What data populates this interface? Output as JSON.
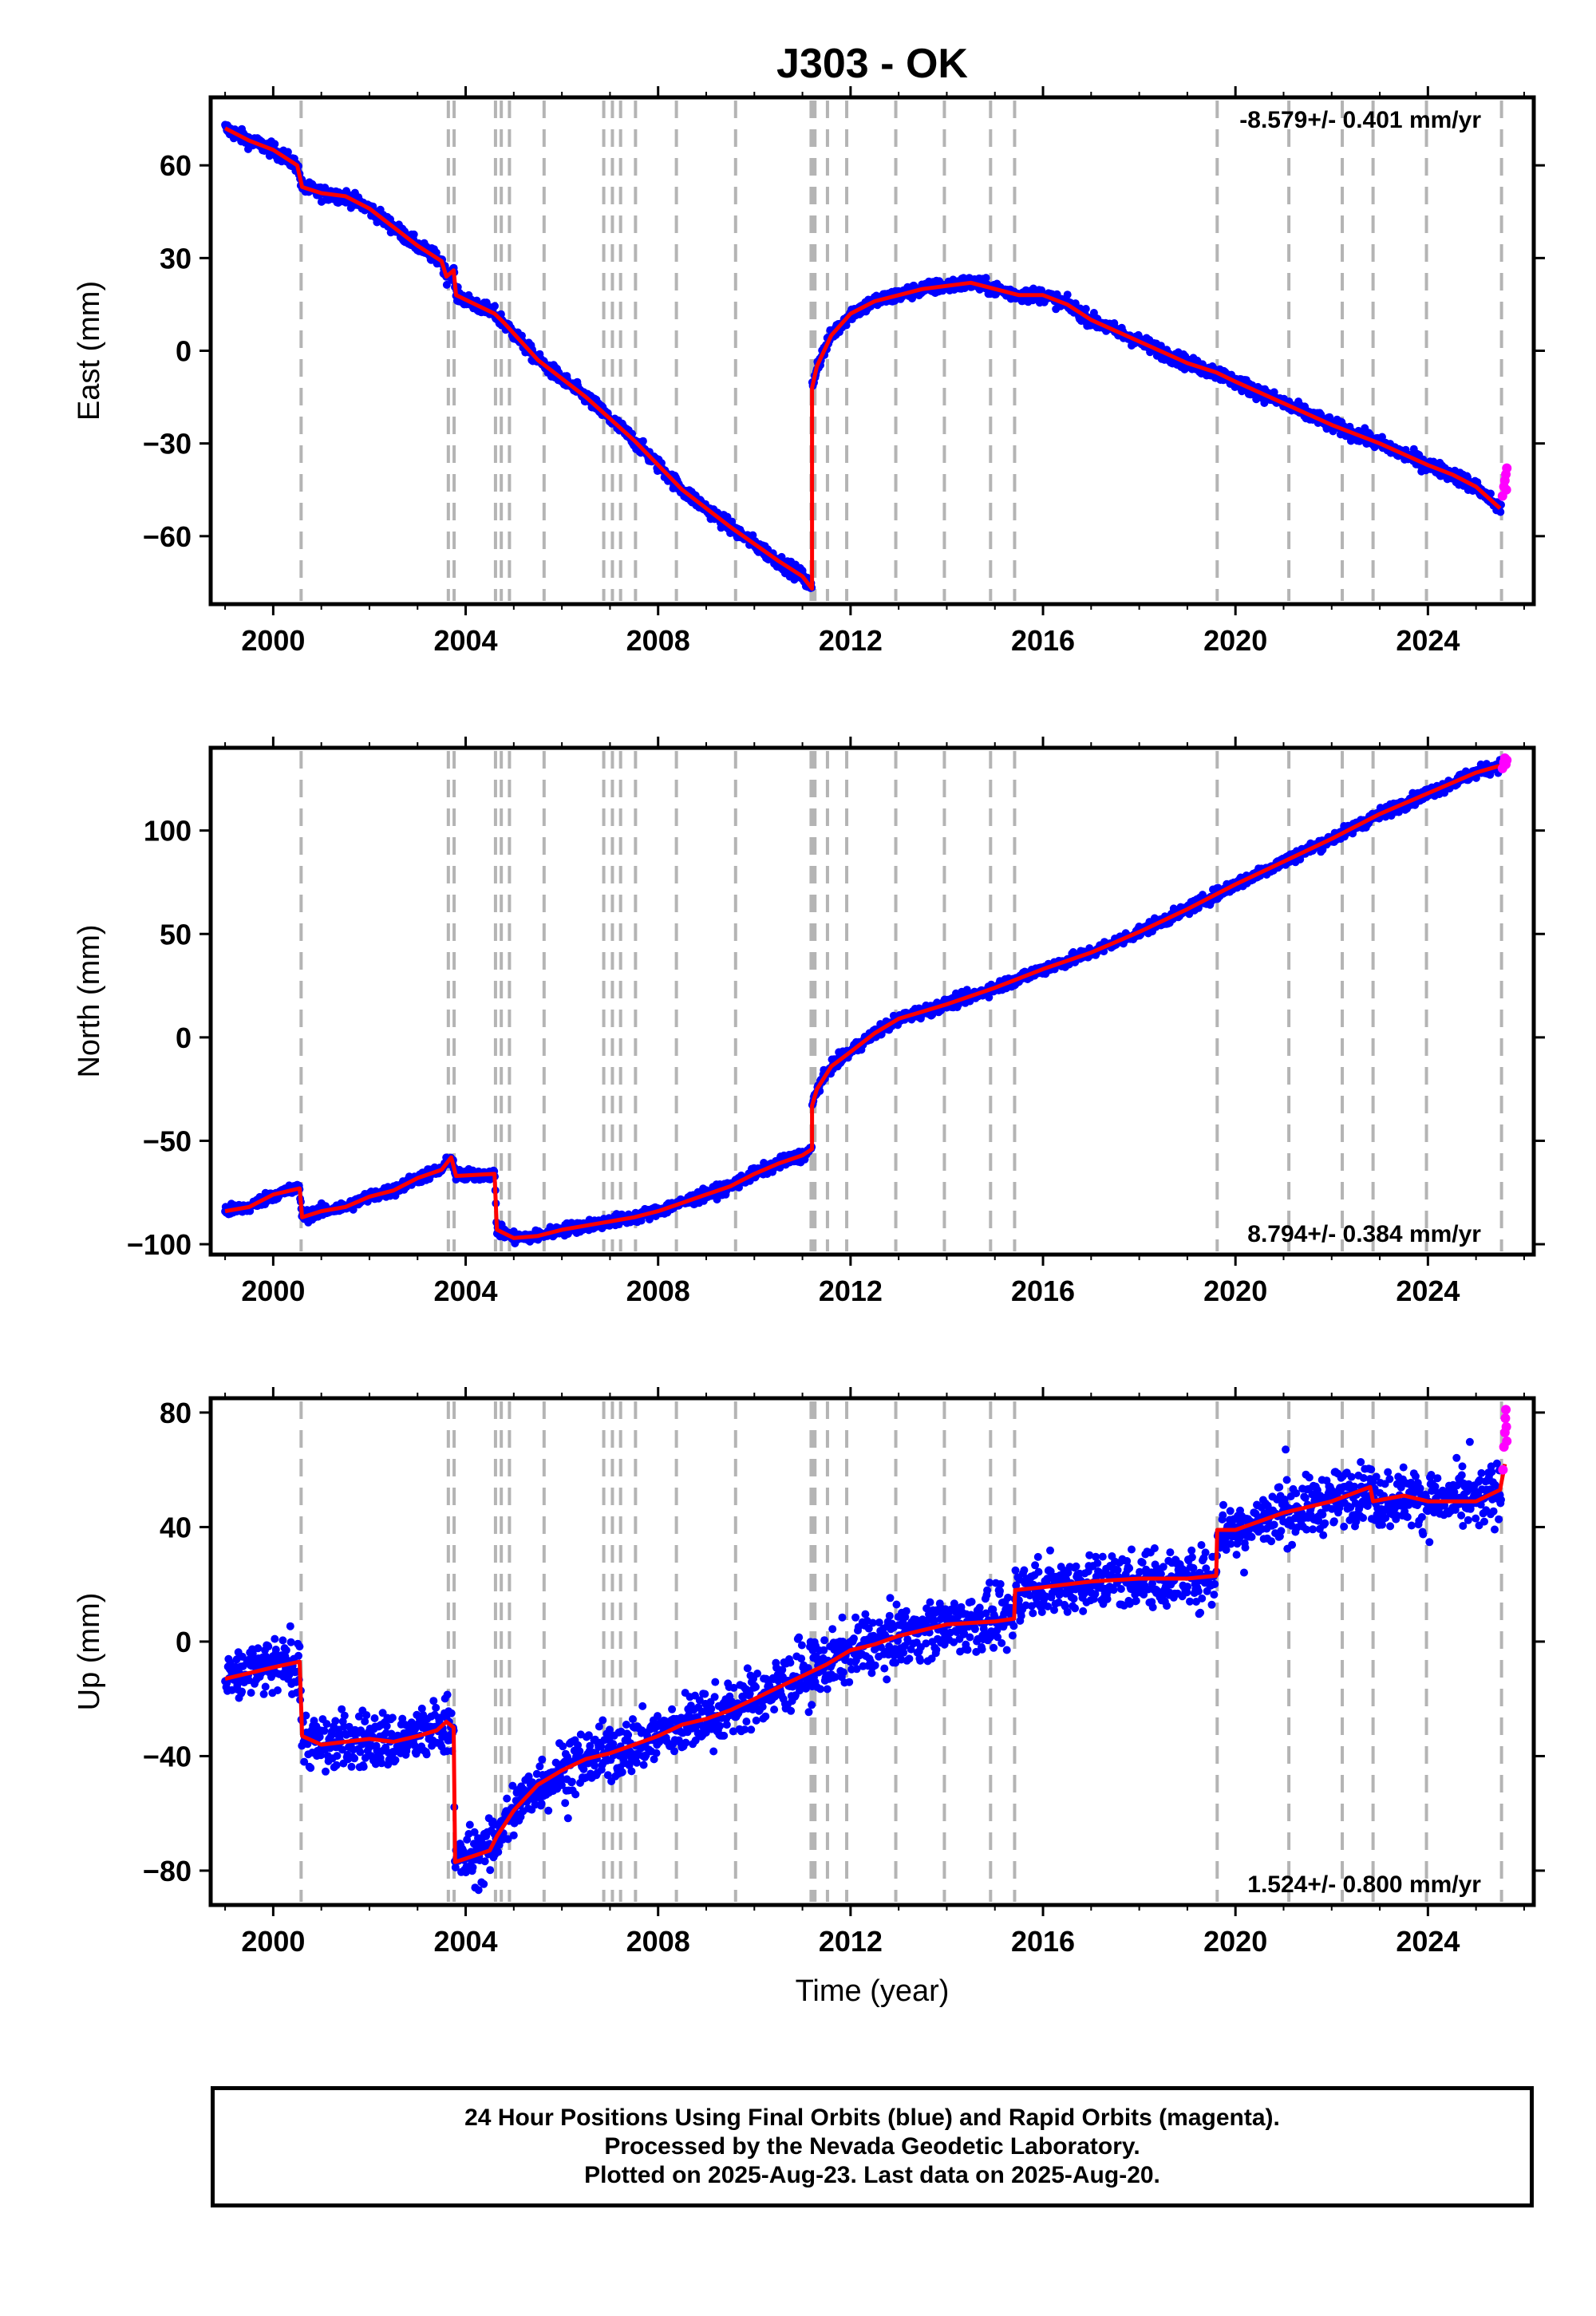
{
  "title": "J303 - OK",
  "colors": {
    "final": "#0000ff",
    "rapid": "#ff00ff",
    "model": "#ff0000",
    "events": "#b4b4b4"
  },
  "event_years": [
    2000.58,
    2003.64,
    2003.76,
    2004.62,
    2004.74,
    2004.91,
    2005.63,
    2006.87,
    2007.05,
    2007.22,
    2007.53,
    2008.38,
    2009.61,
    2011.18,
    2011.21,
    2011.26,
    2011.52,
    2011.92,
    2012.94,
    2013.95,
    2014.91,
    2015.41,
    2019.62,
    2021.11,
    2022.22,
    2022.86,
    2023.97,
    2025.53
  ],
  "chart_data": [
    {
      "type": "scatter",
      "name": "east",
      "ylabel": "East (mm)",
      "xlabel": "",
      "xlim": [
        1998.7,
        2026.2
      ],
      "ylim": [
        -82,
        82
      ],
      "xticks": [
        2000,
        2004,
        2008,
        2012,
        2016,
        2020,
        2024
      ],
      "yticks": [
        -60,
        -30,
        0,
        30,
        60
      ],
      "ytick_labels": [
        "−60",
        "−30",
        "0",
        "30",
        "60"
      ],
      "rate_text": "-8.579+/- 0.401 mm/yr",
      "rate_position": "top-right",
      "scatter_half_width": 2.0,
      "model_line": [
        [
          1999.0,
          72
        ],
        [
          1999.5,
          68
        ],
        [
          2000.0,
          65
        ],
        [
          2000.5,
          60
        ],
        [
          2000.6,
          53
        ],
        [
          2001.0,
          51
        ],
        [
          2001.5,
          50
        ],
        [
          2002.0,
          46
        ],
        [
          2002.5,
          40
        ],
        [
          2003.0,
          34
        ],
        [
          2003.5,
          29
        ],
        [
          2003.6,
          24
        ],
        [
          2003.75,
          26
        ],
        [
          2003.8,
          18
        ],
        [
          2004.6,
          12
        ],
        [
          2004.8,
          9
        ],
        [
          2005.5,
          -3
        ],
        [
          2006.5,
          -15
        ],
        [
          2007.5,
          -29
        ],
        [
          2008.5,
          -45
        ],
        [
          2009.5,
          -57
        ],
        [
          2010.5,
          -68
        ],
        [
          2011.0,
          -73
        ],
        [
          2011.2,
          -77
        ],
        [
          2011.2,
          -12
        ],
        [
          2011.3,
          -5
        ],
        [
          2011.6,
          5
        ],
        [
          2012.0,
          12
        ],
        [
          2012.5,
          16
        ],
        [
          2013.0,
          18
        ],
        [
          2013.5,
          20
        ],
        [
          2014.0,
          21
        ],
        [
          2014.5,
          22
        ],
        [
          2015.0,
          20
        ],
        [
          2015.5,
          18
        ],
        [
          2016.0,
          18
        ],
        [
          2016.5,
          15
        ],
        [
          2017.0,
          10
        ],
        [
          2018.0,
          3
        ],
        [
          2019.0,
          -4
        ],
        [
          2019.6,
          -7
        ],
        [
          2020.0,
          -10
        ],
        [
          2021.0,
          -17
        ],
        [
          2022.0,
          -24
        ],
        [
          2023.0,
          -30
        ],
        [
          2024.0,
          -37
        ],
        [
          2024.5,
          -40
        ],
        [
          2025.0,
          -44
        ],
        [
          2025.5,
          -51
        ]
      ],
      "rapid_points": [
        [
          2025.55,
          -47
        ],
        [
          2025.58,
          -44
        ],
        [
          2025.6,
          -42
        ],
        [
          2025.62,
          -40
        ],
        [
          2025.63,
          -45
        ],
        [
          2025.64,
          -38
        ]
      ]
    },
    {
      "type": "scatter",
      "name": "north",
      "ylabel": "North (mm)",
      "xlabel": "",
      "xlim": [
        1998.7,
        2026.2
      ],
      "ylim": [
        -105,
        140
      ],
      "xticks": [
        2000,
        2004,
        2008,
        2012,
        2016,
        2020,
        2024
      ],
      "yticks": [
        -100,
        -50,
        0,
        50,
        100
      ],
      "ytick_labels": [
        "−100",
        "−50",
        "0",
        "50",
        "100"
      ],
      "rate_text": "8.794+/- 0.384 mm/yr",
      "rate_position": "bottom-right",
      "scatter_half_width": 2.5,
      "model_line": [
        [
          1999.0,
          -84
        ],
        [
          1999.5,
          -82
        ],
        [
          2000.0,
          -76
        ],
        [
          2000.55,
          -73
        ],
        [
          2000.6,
          -87
        ],
        [
          2001.0,
          -84
        ],
        [
          2001.5,
          -82
        ],
        [
          2002.0,
          -77
        ],
        [
          2002.5,
          -74
        ],
        [
          2003.0,
          -68
        ],
        [
          2003.5,
          -64
        ],
        [
          2003.7,
          -58
        ],
        [
          2003.8,
          -67
        ],
        [
          2004.6,
          -66
        ],
        [
          2004.65,
          -93
        ],
        [
          2005.0,
          -97
        ],
        [
          2005.5,
          -96
        ],
        [
          2006.0,
          -93
        ],
        [
          2006.5,
          -91
        ],
        [
          2007.0,
          -89
        ],
        [
          2007.5,
          -87
        ],
        [
          2008.0,
          -84
        ],
        [
          2008.5,
          -80
        ],
        [
          2009.0,
          -76
        ],
        [
          2009.5,
          -72
        ],
        [
          2010.0,
          -66
        ],
        [
          2010.5,
          -61
        ],
        [
          2011.0,
          -57
        ],
        [
          2011.2,
          -54
        ],
        [
          2011.2,
          -33
        ],
        [
          2011.3,
          -25
        ],
        [
          2011.6,
          -14
        ],
        [
          2012.0,
          -7
        ],
        [
          2012.5,
          2
        ],
        [
          2013.0,
          9
        ],
        [
          2014.0,
          16
        ],
        [
          2015.0,
          24
        ],
        [
          2016.0,
          33
        ],
        [
          2017.0,
          41
        ],
        [
          2018.0,
          51
        ],
        [
          2019.0,
          62
        ],
        [
          2020.0,
          74
        ],
        [
          2021.0,
          85
        ],
        [
          2022.0,
          96
        ],
        [
          2023.0,
          108
        ],
        [
          2024.0,
          118
        ],
        [
          2025.0,
          128
        ],
        [
          2025.6,
          132
        ]
      ],
      "rapid_points": [
        [
          2025.55,
          130
        ],
        [
          2025.58,
          133
        ],
        [
          2025.6,
          135
        ],
        [
          2025.62,
          132
        ],
        [
          2025.64,
          134
        ]
      ]
    },
    {
      "type": "scatter",
      "name": "up",
      "ylabel": "Up (mm)",
      "xlabel": "Time (year)",
      "xlim": [
        1998.7,
        2026.2
      ],
      "ylim": [
        -92,
        85
      ],
      "xticks": [
        2000,
        2004,
        2008,
        2012,
        2016,
        2020,
        2024
      ],
      "yticks": [
        -80,
        -40,
        0,
        40,
        80
      ],
      "ytick_labels": [
        "−80",
        "−40",
        "0",
        "40",
        "80"
      ],
      "rate_text": "1.524+/- 0.800 mm/yr",
      "rate_position": "bottom-right",
      "scatter_half_width": 9,
      "model_line": [
        [
          1999.0,
          -13
        ],
        [
          1999.5,
          -11
        ],
        [
          2000.0,
          -9
        ],
        [
          2000.55,
          -7
        ],
        [
          2000.6,
          -33
        ],
        [
          2001.0,
          -36
        ],
        [
          2001.5,
          -35
        ],
        [
          2002.0,
          -34
        ],
        [
          2002.5,
          -35
        ],
        [
          2003.0,
          -33
        ],
        [
          2003.4,
          -31
        ],
        [
          2003.6,
          -28
        ],
        [
          2003.75,
          -30
        ],
        [
          2003.78,
          -77
        ],
        [
          2004.5,
          -73
        ],
        [
          2004.65,
          -68
        ],
        [
          2005.0,
          -59
        ],
        [
          2005.5,
          -50
        ],
        [
          2006.0,
          -45
        ],
        [
          2006.5,
          -41
        ],
        [
          2007.0,
          -39
        ],
        [
          2007.5,
          -36
        ],
        [
          2008.0,
          -33
        ],
        [
          2008.5,
          -29
        ],
        [
          2009.0,
          -27
        ],
        [
          2009.5,
          -24
        ],
        [
          2010.0,
          -20
        ],
        [
          2010.5,
          -16
        ],
        [
          2011.0,
          -12
        ],
        [
          2011.5,
          -8
        ],
        [
          2012.0,
          -3
        ],
        [
          2012.5,
          -1
        ],
        [
          2013.0,
          2
        ],
        [
          2014.0,
          6
        ],
        [
          2015.0,
          7
        ],
        [
          2015.4,
          8
        ],
        [
          2015.42,
          18
        ],
        [
          2016.0,
          19
        ],
        [
          2017.0,
          21
        ],
        [
          2018.0,
          22
        ],
        [
          2019.0,
          22
        ],
        [
          2019.6,
          23
        ],
        [
          2019.62,
          39
        ],
        [
          2020.0,
          39
        ],
        [
          2021.0,
          45
        ],
        [
          2022.0,
          49
        ],
        [
          2022.8,
          54
        ],
        [
          2022.86,
          49
        ],
        [
          2023.5,
          51
        ],
        [
          2024.0,
          49
        ],
        [
          2025.0,
          49
        ],
        [
          2025.5,
          53
        ],
        [
          2025.6,
          62
        ]
      ],
      "rapid_points": [
        [
          2025.56,
          60
        ],
        [
          2025.58,
          68
        ],
        [
          2025.6,
          73
        ],
        [
          2025.61,
          78
        ],
        [
          2025.62,
          81
        ],
        [
          2025.63,
          75
        ],
        [
          2025.64,
          70
        ]
      ]
    }
  ],
  "footer": {
    "line1": "24 Hour Positions Using Final Orbits (blue) and Rapid Orbits (magenta).",
    "line2": "Processed by the Nevada Geodetic Laboratory.",
    "line3": "Plotted on 2025-Aug-23. Last data on 2025-Aug-20."
  }
}
